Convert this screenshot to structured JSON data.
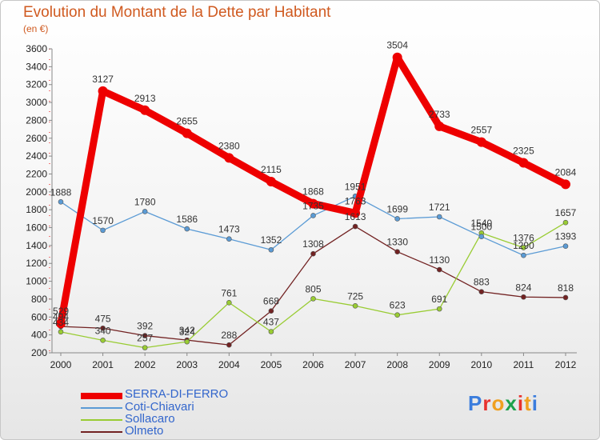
{
  "title": "Evolution du Montant de la Dette par Habitant",
  "unit_label": "(en €)",
  "logo_text": "Proxiti",
  "chart_data": {
    "type": "line",
    "title": "Evolution du Montant de la Dette par Habitant",
    "ylabel": "(en €)",
    "x": [
      2000,
      2001,
      2002,
      2003,
      2004,
      2005,
      2006,
      2007,
      2008,
      2009,
      2010,
      2011,
      2012
    ],
    "ylim": [
      200,
      3600
    ],
    "yticks": [
      200,
      400,
      600,
      800,
      1000,
      1200,
      1400,
      1600,
      1800,
      2000,
      2200,
      2400,
      2600,
      2800,
      3000,
      3200,
      3400,
      3600
    ],
    "grid": false,
    "legend_position": "bottom-left",
    "series": [
      {
        "name": "SERRA-DI-FERRO",
        "color": "#ee0000",
        "values": [
          529,
          3127,
          2913,
          2655,
          2380,
          2115,
          1868,
          1763,
          3504,
          2733,
          2557,
          2325,
          2084
        ]
      },
      {
        "name": "Coti-Chiavari",
        "color": "#5b9bd5",
        "values": [
          1888,
          1570,
          1780,
          1586,
          1473,
          1352,
          1735,
          1951,
          1699,
          1721,
          1500,
          1290,
          1393
        ]
      },
      {
        "name": "Sollacaro",
        "color": "#99cc33",
        "values": [
          434,
          340,
          257,
          324,
          761,
          437,
          805,
          725,
          623,
          691,
          1540,
          1376,
          1657
        ]
      },
      {
        "name": "Olmeto",
        "color": "#722222",
        "values": [
          494,
          475,
          392,
          342,
          288,
          668,
          1308,
          1613,
          1330,
          1130,
          883,
          824,
          818
        ]
      }
    ]
  }
}
